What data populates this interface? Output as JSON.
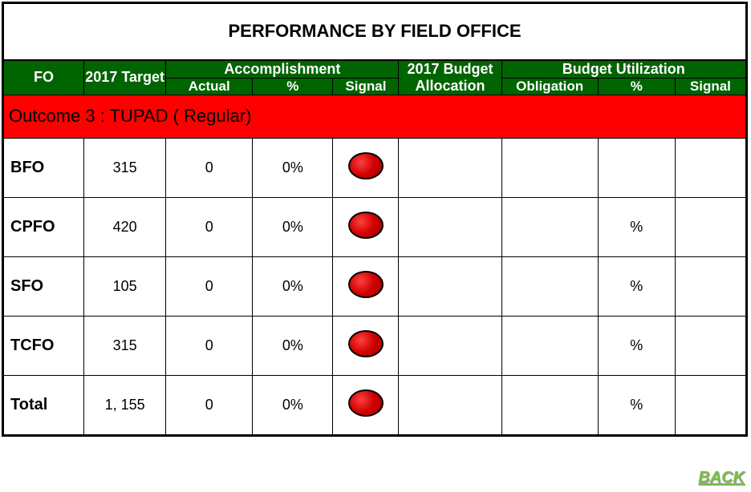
{
  "title": "PERFORMANCE BY FIELD OFFICE",
  "headers": {
    "fo": "FO",
    "target": "2017 Target",
    "accomplishment": "Accomplishment",
    "actual": "Actual",
    "acc_pct": "%",
    "acc_signal": "Signal",
    "budget_alloc": "2017 Budget Allocation",
    "budget_util": "Budget Utilization",
    "obligation": "Obligation",
    "util_pct": "%",
    "util_signal": "Signal"
  },
  "outcome_label": "Outcome 3 : TUPAD ( Regular)",
  "signal": {
    "color": "#d00000",
    "width": 44,
    "height": 34
  },
  "rows": [
    {
      "fo": "BFO",
      "target": "315",
      "actual": "0",
      "acc_pct": "0%",
      "acc_signal": true,
      "budget": "",
      "oblig": "",
      "util_pct": "",
      "util_signal": false
    },
    {
      "fo": "CPFO",
      "target": "420",
      "actual": "0",
      "acc_pct": "0%",
      "acc_signal": true,
      "budget": "",
      "oblig": "",
      "util_pct": "%",
      "util_signal": false
    },
    {
      "fo": "SFO",
      "target": "105",
      "actual": "0",
      "acc_pct": "0%",
      "acc_signal": true,
      "budget": "",
      "oblig": "",
      "util_pct": "%",
      "util_signal": false
    },
    {
      "fo": "TCFO",
      "target": "315",
      "actual": "0",
      "acc_pct": "0%",
      "acc_signal": true,
      "budget": "",
      "oblig": "",
      "util_pct": "%",
      "util_signal": false
    },
    {
      "fo": "Total",
      "target": "1, 155",
      "actual": "0",
      "acc_pct": "0%",
      "acc_signal": true,
      "budget": "",
      "oblig": "",
      "util_pct": "%",
      "util_signal": false
    }
  ],
  "back_label": "BACK",
  "colors": {
    "header_bg": "#006400",
    "outcome_bg": "#ff0000",
    "title_bg": "#ffffff",
    "border": "#000000",
    "back": "#7ac043"
  }
}
